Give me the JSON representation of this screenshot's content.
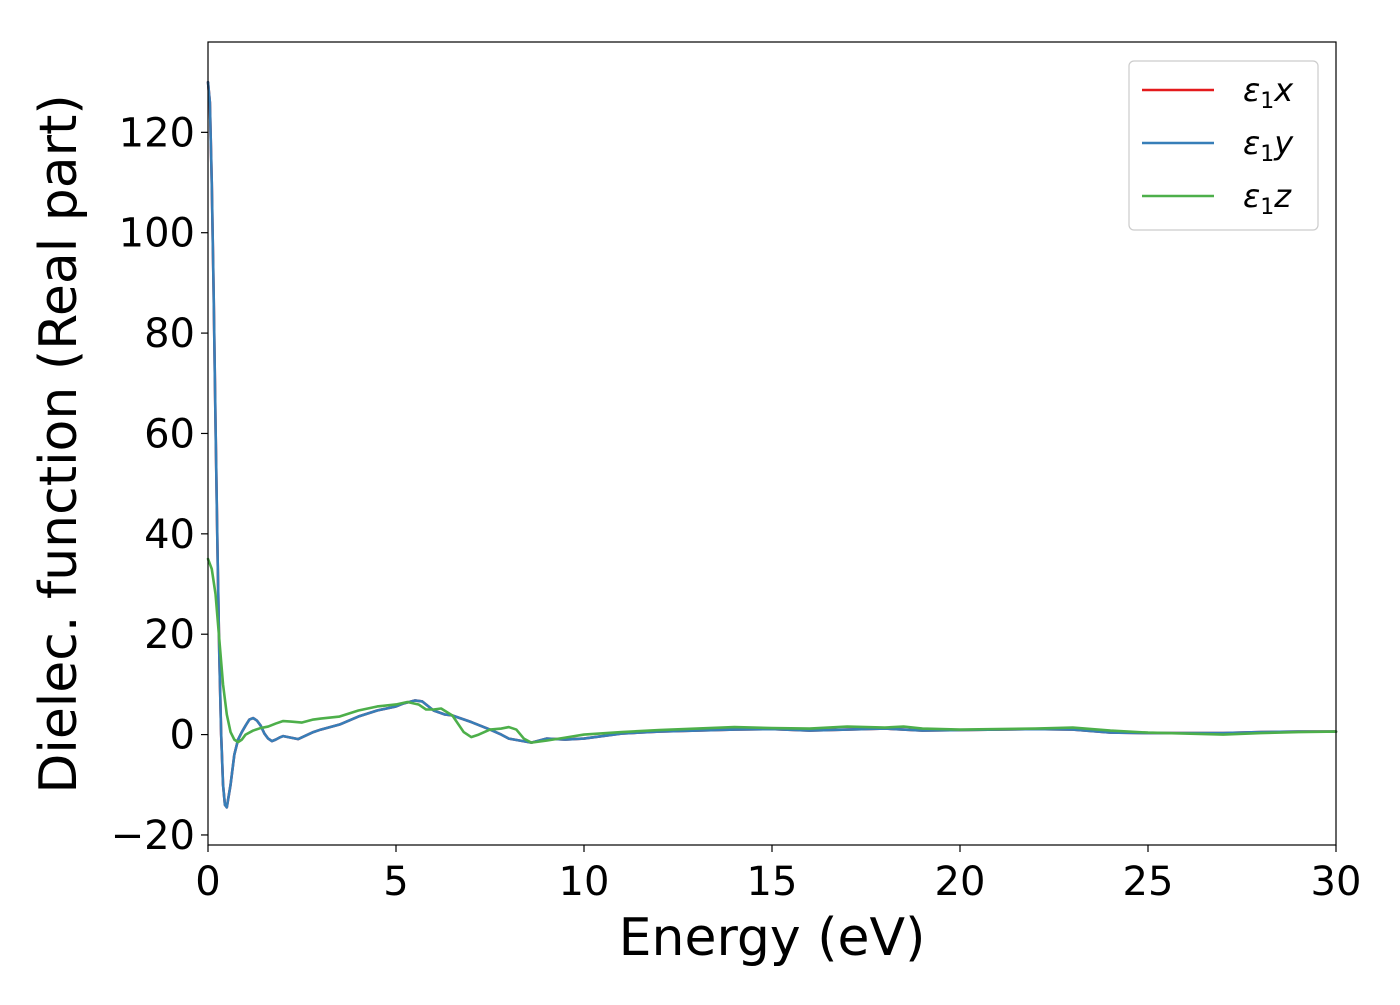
{
  "chart_data": {
    "type": "line",
    "xlabel": "Energy (eV)",
    "ylabel": "Dielec. function (Real part)",
    "xlim": [
      0,
      30
    ],
    "ylim": [
      -22,
      138
    ],
    "xticks": [
      {
        "value": 0,
        "label": "0"
      },
      {
        "value": 5,
        "label": "5"
      },
      {
        "value": 10,
        "label": "10"
      },
      {
        "value": 15,
        "label": "15"
      },
      {
        "value": 20,
        "label": "20"
      },
      {
        "value": 25,
        "label": "25"
      },
      {
        "value": 30,
        "label": "30"
      }
    ],
    "yticks": [
      {
        "value": -20,
        "label": "−20"
      },
      {
        "value": 0,
        "label": "0"
      },
      {
        "value": 20,
        "label": "20"
      },
      {
        "value": 40,
        "label": "40"
      },
      {
        "value": 60,
        "label": "60"
      },
      {
        "value": 80,
        "label": "80"
      },
      {
        "value": 100,
        "label": "100"
      },
      {
        "value": 120,
        "label": "120"
      }
    ],
    "grid": false,
    "legend_position": "top-right",
    "series": [
      {
        "name": "ε₁x",
        "legend_main": "ε",
        "legend_sub": "1",
        "legend_tail": "x",
        "color": "#e41a1c",
        "points": [
          [
            0,
            130
          ],
          [
            0.05,
            126
          ],
          [
            0.1,
            110
          ],
          [
            0.15,
            88
          ],
          [
            0.2,
            62
          ],
          [
            0.25,
            38
          ],
          [
            0.3,
            16
          ],
          [
            0.35,
            0
          ],
          [
            0.4,
            -10
          ],
          [
            0.45,
            -14
          ],
          [
            0.5,
            -14.5
          ],
          [
            0.6,
            -10
          ],
          [
            0.7,
            -4
          ],
          [
            0.8,
            -1
          ],
          [
            0.9,
            0.5
          ],
          [
            1.0,
            1.8
          ],
          [
            1.1,
            3
          ],
          [
            1.2,
            3.3
          ],
          [
            1.3,
            2.8
          ],
          [
            1.4,
            1.8
          ],
          [
            1.5,
            0.2
          ],
          [
            1.6,
            -0.8
          ],
          [
            1.7,
            -1.3
          ],
          [
            1.8,
            -1
          ],
          [
            1.9,
            -0.6
          ],
          [
            2.0,
            -0.3
          ],
          [
            2.2,
            -0.6
          ],
          [
            2.4,
            -0.9
          ],
          [
            2.6,
            -0.2
          ],
          [
            2.8,
            0.5
          ],
          [
            3.0,
            1
          ],
          [
            3.5,
            2
          ],
          [
            4.0,
            3.6
          ],
          [
            4.5,
            4.8
          ],
          [
            5.0,
            5.6
          ],
          [
            5.2,
            6.2
          ],
          [
            5.5,
            6.8
          ],
          [
            5.7,
            6.6
          ],
          [
            6.0,
            4.8
          ],
          [
            6.3,
            4
          ],
          [
            6.5,
            3.8
          ],
          [
            7.0,
            2.5
          ],
          [
            7.5,
            1
          ],
          [
            7.8,
            0
          ],
          [
            8.0,
            -0.8
          ],
          [
            8.3,
            -1.2
          ],
          [
            8.6,
            -1.6
          ],
          [
            9.0,
            -0.8
          ],
          [
            9.5,
            -1
          ],
          [
            10,
            -0.8
          ],
          [
            10.5,
            -0.3
          ],
          [
            11,
            0.2
          ],
          [
            12,
            0.6
          ],
          [
            13,
            0.8
          ],
          [
            14,
            1
          ],
          [
            15,
            1.1
          ],
          [
            16,
            0.8
          ],
          [
            17,
            1
          ],
          [
            18,
            1.2
          ],
          [
            19,
            0.8
          ],
          [
            20,
            0.9
          ],
          [
            21,
            1
          ],
          [
            22,
            1.1
          ],
          [
            23,
            1
          ],
          [
            24,
            0.4
          ],
          [
            25,
            0.3
          ],
          [
            26,
            0.3
          ],
          [
            27,
            0.3
          ],
          [
            28,
            0.5
          ],
          [
            29,
            0.6
          ],
          [
            30,
            0.6
          ]
        ]
      },
      {
        "name": "ε₁y",
        "legend_main": "ε",
        "legend_sub": "1",
        "legend_tail": "y",
        "color": "#377eb8",
        "points": [
          [
            0,
            130
          ],
          [
            0.05,
            126
          ],
          [
            0.1,
            110
          ],
          [
            0.15,
            88
          ],
          [
            0.2,
            62
          ],
          [
            0.25,
            38
          ],
          [
            0.3,
            16
          ],
          [
            0.35,
            0
          ],
          [
            0.4,
            -10
          ],
          [
            0.45,
            -14
          ],
          [
            0.5,
            -14.5
          ],
          [
            0.6,
            -10
          ],
          [
            0.7,
            -4
          ],
          [
            0.8,
            -1
          ],
          [
            0.9,
            0.5
          ],
          [
            1.0,
            1.8
          ],
          [
            1.1,
            3
          ],
          [
            1.2,
            3.3
          ],
          [
            1.3,
            2.8
          ],
          [
            1.4,
            1.8
          ],
          [
            1.5,
            0.2
          ],
          [
            1.6,
            -0.8
          ],
          [
            1.7,
            -1.3
          ],
          [
            1.8,
            -1
          ],
          [
            1.9,
            -0.6
          ],
          [
            2.0,
            -0.3
          ],
          [
            2.2,
            -0.6
          ],
          [
            2.4,
            -0.9
          ],
          [
            2.6,
            -0.2
          ],
          [
            2.8,
            0.5
          ],
          [
            3.0,
            1
          ],
          [
            3.5,
            2
          ],
          [
            4.0,
            3.6
          ],
          [
            4.5,
            4.8
          ],
          [
            5.0,
            5.6
          ],
          [
            5.2,
            6.2
          ],
          [
            5.5,
            6.8
          ],
          [
            5.7,
            6.6
          ],
          [
            6.0,
            4.8
          ],
          [
            6.3,
            4
          ],
          [
            6.5,
            3.8
          ],
          [
            7.0,
            2.5
          ],
          [
            7.5,
            1
          ],
          [
            7.8,
            0
          ],
          [
            8.0,
            -0.8
          ],
          [
            8.3,
            -1.2
          ],
          [
            8.6,
            -1.6
          ],
          [
            9.0,
            -0.8
          ],
          [
            9.5,
            -1
          ],
          [
            10,
            -0.8
          ],
          [
            10.5,
            -0.3
          ],
          [
            11,
            0.2
          ],
          [
            12,
            0.6
          ],
          [
            13,
            0.8
          ],
          [
            14,
            1
          ],
          [
            15,
            1.1
          ],
          [
            16,
            0.8
          ],
          [
            17,
            1
          ],
          [
            18,
            1.2
          ],
          [
            19,
            0.8
          ],
          [
            20,
            0.9
          ],
          [
            21,
            1
          ],
          [
            22,
            1.1
          ],
          [
            23,
            1
          ],
          [
            24,
            0.4
          ],
          [
            25,
            0.3
          ],
          [
            26,
            0.3
          ],
          [
            27,
            0.3
          ],
          [
            28,
            0.5
          ],
          [
            29,
            0.6
          ],
          [
            30,
            0.6
          ]
        ]
      },
      {
        "name": "ε₁z",
        "legend_main": "ε",
        "legend_sub": "1",
        "legend_tail": "z",
        "color": "#4daf4a",
        "points": [
          [
            0,
            35
          ],
          [
            0.1,
            33
          ],
          [
            0.2,
            28
          ],
          [
            0.3,
            19
          ],
          [
            0.4,
            10
          ],
          [
            0.5,
            4
          ],
          [
            0.6,
            0.5
          ],
          [
            0.7,
            -1
          ],
          [
            0.8,
            -1.5
          ],
          [
            0.9,
            -1
          ],
          [
            1.0,
            0
          ],
          [
            1.2,
            0.8
          ],
          [
            1.4,
            1.3
          ],
          [
            1.6,
            1.6
          ],
          [
            1.8,
            2.2
          ],
          [
            2.0,
            2.7
          ],
          [
            2.2,
            2.6
          ],
          [
            2.5,
            2.4
          ],
          [
            2.8,
            3
          ],
          [
            3.0,
            3.2
          ],
          [
            3.5,
            3.6
          ],
          [
            4.0,
            4.8
          ],
          [
            4.5,
            5.6
          ],
          [
            5.0,
            6
          ],
          [
            5.3,
            6.5
          ],
          [
            5.6,
            6
          ],
          [
            5.8,
            5
          ],
          [
            6.0,
            5
          ],
          [
            6.2,
            5.2
          ],
          [
            6.5,
            3.8
          ],
          [
            6.8,
            0.5
          ],
          [
            7.0,
            -0.5
          ],
          [
            7.2,
            0
          ],
          [
            7.5,
            1
          ],
          [
            7.8,
            1.2
          ],
          [
            8.0,
            1.5
          ],
          [
            8.2,
            1
          ],
          [
            8.4,
            -0.8
          ],
          [
            8.6,
            -1.6
          ],
          [
            9.0,
            -1.2
          ],
          [
            9.5,
            -0.6
          ],
          [
            10,
            0
          ],
          [
            11,
            0.5
          ],
          [
            12,
            0.9
          ],
          [
            13,
            1.2
          ],
          [
            14,
            1.5
          ],
          [
            15,
            1.3
          ],
          [
            16,
            1.2
          ],
          [
            17,
            1.6
          ],
          [
            18,
            1.4
          ],
          [
            18.5,
            1.6
          ],
          [
            19,
            1.2
          ],
          [
            20,
            1
          ],
          [
            21,
            1.1
          ],
          [
            22,
            1.2
          ],
          [
            23,
            1.4
          ],
          [
            24,
            0.8
          ],
          [
            25,
            0.4
          ],
          [
            26,
            0.2
          ],
          [
            27,
            0
          ],
          [
            28,
            0.3
          ],
          [
            29,
            0.5
          ],
          [
            30,
            0.6
          ]
        ]
      }
    ]
  }
}
